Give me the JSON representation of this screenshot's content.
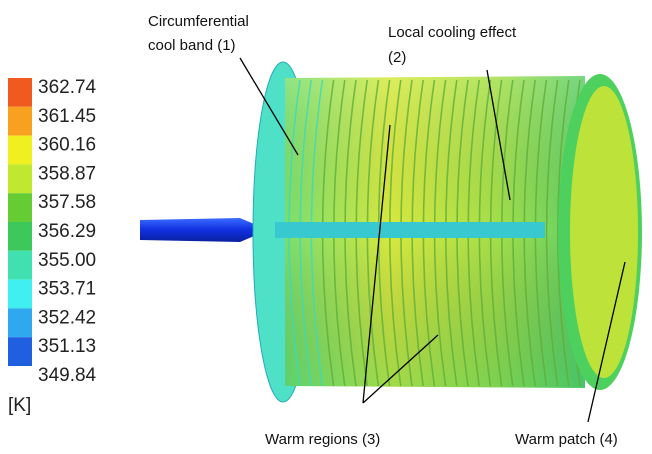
{
  "legend": {
    "levels": [
      "362.74",
      "361.45",
      "360.16",
      "358.87",
      "357.58",
      "356.29",
      "355.00",
      "353.71",
      "352.42",
      "351.13",
      "349.84"
    ],
    "unit": "[K]"
  },
  "annotations": [
    {
      "label": [
        "Circumferential",
        "cool band (1)"
      ]
    },
    {
      "label": [
        "Local cooling effect",
        "(2)"
      ]
    },
    {
      "label": [
        "Warm regions (3)"
      ]
    },
    {
      "label": [
        "Warm patch (4)"
      ]
    }
  ]
}
